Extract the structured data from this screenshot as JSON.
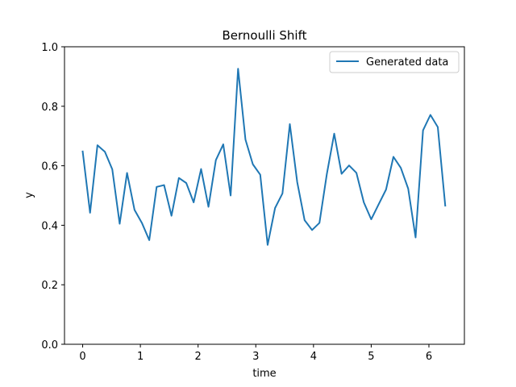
{
  "chart_data": {
    "type": "line",
    "title": "Bernoulli Shift",
    "xlabel": "time",
    "ylabel": "y",
    "xlim": [
      -0.315,
      6.615
    ],
    "ylim": [
      0.0,
      1.0
    ],
    "x_ticks": [
      0,
      1,
      2,
      3,
      4,
      5,
      6
    ],
    "x_tick_labels": [
      "0",
      "1",
      "2",
      "3",
      "4",
      "5",
      "6"
    ],
    "y_ticks": [
      0.0,
      0.2,
      0.4,
      0.6,
      0.8,
      1.0
    ],
    "y_tick_labels": [
      "0.0",
      "0.2",
      "0.4",
      "0.6",
      "0.8",
      "1.0"
    ],
    "grid": false,
    "legend_position": "top-right",
    "series": [
      {
        "name": "Generated data",
        "color": "#1f77b4",
        "x": [
          0.0,
          0.128,
          0.256,
          0.385,
          0.513,
          0.641,
          0.769,
          0.898,
          1.026,
          1.154,
          1.282,
          1.411,
          1.539,
          1.667,
          1.795,
          1.923,
          2.052,
          2.18,
          2.308,
          2.436,
          2.564,
          2.693,
          2.821,
          2.949,
          3.077,
          3.205,
          3.334,
          3.462,
          3.59,
          3.718,
          3.846,
          3.975,
          4.103,
          4.231,
          4.359,
          4.487,
          4.616,
          4.744,
          4.872,
          5.0,
          5.128,
          5.257,
          5.385,
          5.513,
          5.641,
          5.769,
          5.898,
          6.026,
          6.154,
          6.283
        ],
        "values": [
          0.648,
          0.442,
          0.669,
          0.647,
          0.588,
          0.405,
          0.576,
          0.452,
          0.408,
          0.35,
          0.529,
          0.535,
          0.432,
          0.559,
          0.542,
          0.477,
          0.589,
          0.462,
          0.619,
          0.672,
          0.5,
          0.926,
          0.688,
          0.605,
          0.57,
          0.334,
          0.458,
          0.507,
          0.74,
          0.545,
          0.417,
          0.384,
          0.408,
          0.572,
          0.708,
          0.573,
          0.601,
          0.576,
          0.477,
          0.42,
          0.47,
          0.52,
          0.63,
          0.593,
          0.523,
          0.359,
          0.719,
          0.771,
          0.73,
          0.466
        ]
      }
    ]
  }
}
